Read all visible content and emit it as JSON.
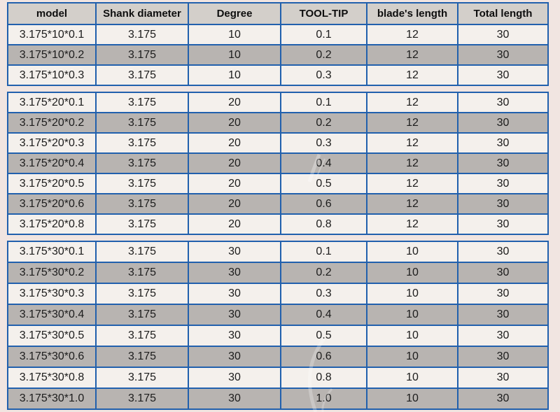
{
  "page": {
    "background_color": "#f1e5e1"
  },
  "colors": {
    "table_border": "#2160ad",
    "header_background": "#d3cfca",
    "row_light": "#f4f0ec",
    "row_dark": "#b8b4b1",
    "text": "#1c1c1c"
  },
  "table": {
    "headers": [
      "model",
      "Shank diameter",
      "Degree",
      "TOOL-TIP",
      "blade's length",
      "Total length"
    ],
    "groups": [
      {
        "name": "degree-10",
        "rows": [
          [
            "3.175*10*0.1",
            "3.175",
            "10",
            "0.1",
            "12",
            "30"
          ],
          [
            "3.175*10*0.2",
            "3.175",
            "10",
            "0.2",
            "12",
            "30"
          ],
          [
            "3.175*10*0.3",
            "3.175",
            "10",
            "0.3",
            "12",
            "30"
          ]
        ]
      },
      {
        "name": "degree-20",
        "rows": [
          [
            "3.175*20*0.1",
            "3.175",
            "20",
            "0.1",
            "12",
            "30"
          ],
          [
            "3.175*20*0.2",
            "3.175",
            "20",
            "0.2",
            "12",
            "30"
          ],
          [
            "3.175*20*0.3",
            "3.175",
            "20",
            "0.3",
            "12",
            "30"
          ],
          [
            "3.175*20*0.4",
            "3.175",
            "20",
            "0.4",
            "12",
            "30"
          ],
          [
            "3.175*20*0.5",
            "3.175",
            "20",
            "0.5",
            "12",
            "30"
          ],
          [
            "3.175*20*0.6",
            "3.175",
            "20",
            "0.6",
            "12",
            "30"
          ],
          [
            "3.175*20*0.8",
            "3.175",
            "20",
            "0.8",
            "12",
            "30"
          ]
        ]
      },
      {
        "name": "degree-30",
        "rows": [
          [
            "3.175*30*0.1",
            "3.175",
            "30",
            "0.1",
            "10",
            "30"
          ],
          [
            "3.175*30*0.2",
            "3.175",
            "30",
            "0.2",
            "10",
            "30"
          ],
          [
            "3.175*30*0.3",
            "3.175",
            "30",
            "0.3",
            "10",
            "30"
          ],
          [
            "3.175*30*0.4",
            "3.175",
            "30",
            "0.4",
            "10",
            "30"
          ],
          [
            "3.175*30*0.5",
            "3.175",
            "30",
            "0.5",
            "10",
            "30"
          ],
          [
            "3.175*30*0.6",
            "3.175",
            "30",
            "0.6",
            "10",
            "30"
          ],
          [
            "3.175*30*0.8",
            "3.175",
            "30",
            "0.8",
            "10",
            "30"
          ],
          [
            "3.175*30*1.0",
            "3.175",
            "30",
            "1.0",
            "10",
            "30"
          ]
        ]
      }
    ]
  }
}
